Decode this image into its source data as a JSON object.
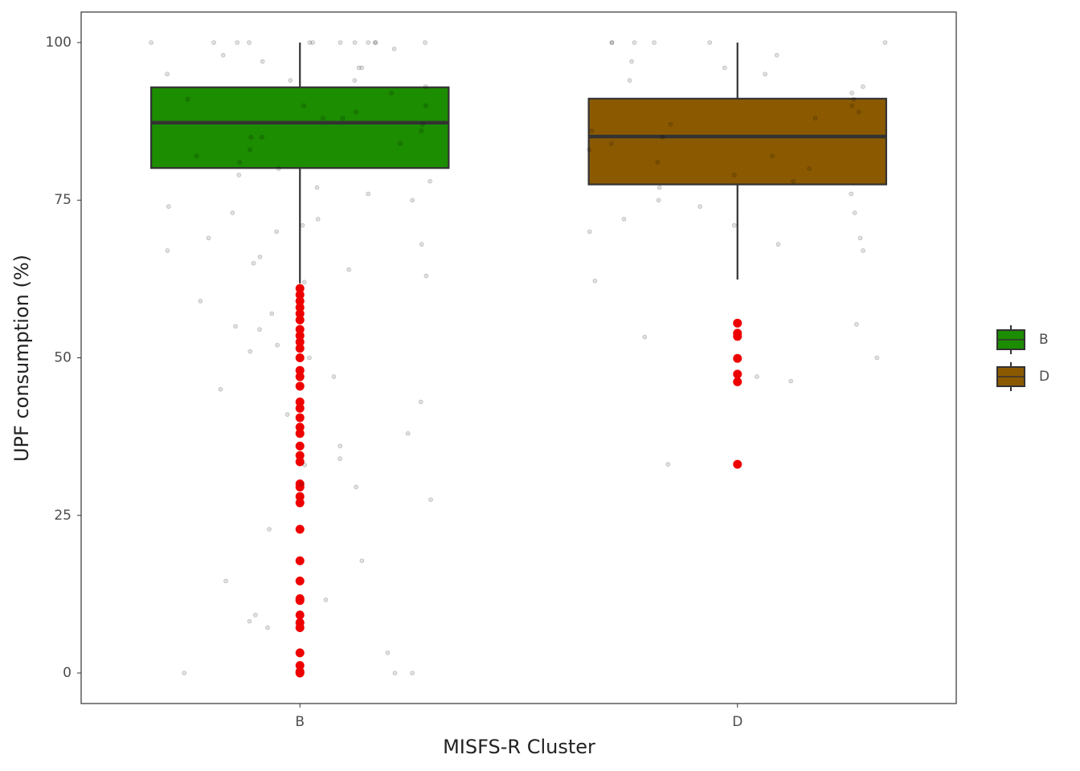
{
  "chart_data": {
    "type": "boxplot",
    "x_label": "MISFS-R Cluster",
    "y_label": "UPF consumption (%)",
    "categories": [
      "B",
      "D"
    ],
    "ylim": [
      -4.84,
      104.84
    ],
    "yticks": [
      0,
      25,
      50,
      75,
      100
    ],
    "grid": false,
    "legend": "right",
    "boxes": [
      {
        "name": "B",
        "color": "#1c8c00",
        "min": 61.8,
        "q1": 80.1,
        "median": 87.3,
        "q3": 92.9,
        "max": 100,
        "outlier_color": "#ee0000",
        "outliers": [
          61,
          60,
          59,
          58,
          57,
          56,
          54.5,
          53.5,
          52.5,
          51.5,
          50,
          48,
          47,
          45.5,
          43,
          42,
          40.5,
          39,
          38,
          36,
          34.5,
          33.5,
          30,
          29.5,
          28,
          27,
          22.8,
          17.8,
          14.6,
          11.8,
          11.5,
          9.2,
          8,
          7.2,
          3.2,
          1.2,
          0.2,
          0
        ],
        "points": [
          100,
          100,
          100,
          100,
          100,
          100,
          100,
          100,
          100,
          100,
          100,
          100,
          99,
          98,
          97,
          96,
          96,
          95,
          94,
          94,
          93,
          92,
          91,
          90,
          90,
          89,
          88,
          88,
          87,
          86,
          85,
          85,
          84,
          83,
          82,
          81,
          80,
          79,
          78,
          77,
          76,
          75,
          74,
          73,
          72,
          71,
          70,
          69,
          68,
          67,
          66,
          65,
          64,
          63,
          62,
          59,
          57,
          55,
          54.5,
          52,
          51,
          50,
          47,
          45,
          43,
          41,
          38,
          36,
          34,
          33,
          30,
          29.5,
          27.5,
          22.8,
          17.8,
          14.6,
          11.6,
          9.2,
          8.2,
          7.2,
          3.2,
          0,
          0,
          0
        ]
      },
      {
        "name": "D",
        "color": "#8b5a00",
        "min": 62.4,
        "q1": 77.5,
        "median": 85.1,
        "q3": 91.1,
        "max": 100,
        "outlier_color": "#ee0000",
        "outliers": [
          55.5,
          53.9,
          53.4,
          49.9,
          47.4,
          46.2,
          33.1
        ],
        "points": [
          100,
          100,
          100,
          100,
          100,
          100,
          98,
          97,
          96,
          95,
          94,
          93,
          92,
          91,
          90,
          89,
          88,
          87,
          86,
          85,
          84,
          83,
          82,
          81,
          80,
          79,
          78,
          77,
          76,
          75,
          74,
          73,
          72,
          71,
          70,
          69,
          68,
          67,
          62.2,
          55.3,
          53.3,
          50,
          47,
          46.3,
          33.1
        ]
      }
    ]
  }
}
